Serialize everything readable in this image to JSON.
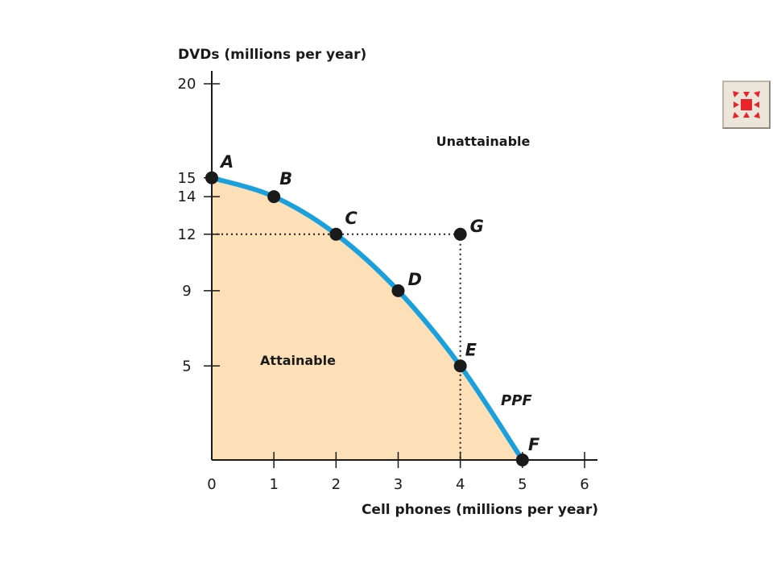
{
  "chart_data": {
    "type": "line",
    "ylabel": "DVDs (millions per year)",
    "xlabel": "Cell phones (millions per year)",
    "xlim": [
      0,
      6
    ],
    "ylim": [
      0,
      20
    ],
    "x_ticks": [
      {
        "value": 0,
        "label": "0"
      },
      {
        "value": 1,
        "label": "1"
      },
      {
        "value": 2,
        "label": "2"
      },
      {
        "value": 3,
        "label": "3"
      },
      {
        "value": 4,
        "label": "4"
      },
      {
        "value": 5,
        "label": "5"
      },
      {
        "value": 6,
        "label": "6"
      }
    ],
    "y_ticks": [
      {
        "value": 5,
        "label": "5"
      },
      {
        "value": 9,
        "label": "9"
      },
      {
        "value": 12,
        "label": "12"
      },
      {
        "value": 14,
        "label": "14"
      },
      {
        "value": 15,
        "label": "15"
      },
      {
        "value": 20,
        "label": "20"
      }
    ],
    "origin_label": "0",
    "series": [
      {
        "name": "PPF",
        "color": "#1aa0dc",
        "points": [
          {
            "label": "A",
            "x": 0,
            "y": 15
          },
          {
            "label": "B",
            "x": 1,
            "y": 14
          },
          {
            "label": "C",
            "x": 2,
            "y": 12
          },
          {
            "label": "D",
            "x": 3,
            "y": 9
          },
          {
            "label": "E",
            "x": 4,
            "y": 5
          },
          {
            "label": "F",
            "x": 5,
            "y": 0
          }
        ]
      }
    ],
    "extra_points": [
      {
        "label": "G",
        "x": 4,
        "y": 12
      }
    ],
    "guides": [
      {
        "from": {
          "x": 0,
          "y": 12
        },
        "to": {
          "x": 4,
          "y": 12
        },
        "style": "dotted"
      },
      {
        "from": {
          "x": 4,
          "y": 12
        },
        "to": {
          "x": 4,
          "y": 0
        },
        "style": "dotted"
      }
    ],
    "regions": [
      {
        "name": "attainable",
        "label": "Attainable",
        "fill": "#fde0b8"
      },
      {
        "name": "unattainable",
        "label": "Unattainable"
      }
    ],
    "annotations": [
      {
        "text": "PPF"
      }
    ],
    "grid": false,
    "legend": "none"
  },
  "ui": {
    "expand_button_icon": "expand-arrows-icon",
    "icon_color": "#e8232a"
  }
}
